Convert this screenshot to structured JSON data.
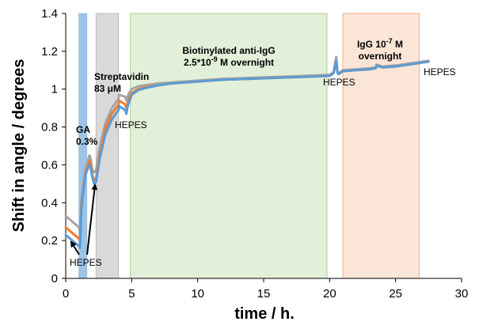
{
  "chart_data": {
    "type": "line",
    "title": "",
    "xlabel": "time / h.",
    "ylabel": "Shift in angle / degrees",
    "xlim": [
      0,
      30
    ],
    "ylim": [
      0,
      1.4
    ],
    "x_ticks": [
      "0",
      "5",
      "10",
      "15",
      "20",
      "25",
      "30"
    ],
    "y_ticks": [
      "0",
      "0.2",
      "0.4",
      "0.6",
      "0.8",
      "1",
      "1.2",
      "1.4"
    ],
    "grid": false,
    "legend": "none",
    "regions": [
      {
        "x_start": 1.0,
        "x_end": 1.6,
        "color": "#9dc3e6"
      },
      {
        "x_start": 2.3,
        "x_end": 4.0,
        "color": "#d9d9d9"
      },
      {
        "x_start": 4.9,
        "x_end": 19.8,
        "color": "#e2efd9"
      },
      {
        "x_start": 21.0,
        "x_end": 26.8,
        "color": "#fbe5d6"
      }
    ],
    "annotations": [
      {
        "id": "ga",
        "lines": [
          "GA",
          "0.3%"
        ]
      },
      {
        "id": "streptavidin",
        "lines": [
          "Streptavidin",
          "83 μM"
        ]
      },
      {
        "id": "hepes1",
        "lines": [
          "HEPES"
        ]
      },
      {
        "id": "hepes2",
        "lines": [
          "HEPES"
        ]
      },
      {
        "id": "biotin",
        "lines": [
          "Biotinylated anti-IgG",
          "2.5*10-9 M overnight"
        ]
      },
      {
        "id": "hepes3",
        "lines": [
          "HEPES"
        ]
      },
      {
        "id": "igg",
        "lines": [
          "IgG 10-7 M",
          "overnight"
        ]
      },
      {
        "id": "hepes4",
        "lines": [
          "HEPES"
        ]
      }
    ],
    "series": [
      {
        "color": "#a5a5a5",
        "x": [
          0,
          0.5,
          1.0,
          1.08,
          1.2,
          1.5,
          1.8,
          1.9,
          2.0,
          2.15,
          2.3,
          2.6,
          3.0,
          3.5,
          4.0,
          4.05,
          4.5,
          4.6,
          4.7,
          4.8,
          5.0,
          5.5,
          6,
          7,
          8,
          10,
          12,
          14,
          16,
          18,
          19.8,
          20.0,
          20.3,
          20.5,
          20.6,
          20.7,
          21.0,
          22,
          23,
          23.5,
          23.55,
          24,
          25,
          26,
          27,
          27.5
        ],
        "y": [
          0.33,
          0.3,
          0.27,
          0.25,
          0.42,
          0.58,
          0.65,
          0.63,
          0.58,
          0.56,
          0.57,
          0.7,
          0.82,
          0.9,
          0.95,
          0.97,
          0.96,
          0.94,
          0.96,
          0.98,
          1.0,
          1.015,
          1.02,
          1.03,
          1.035,
          1.045,
          1.055,
          1.06,
          1.065,
          1.07,
          1.075,
          1.075,
          1.09,
          1.17,
          1.09,
          1.085,
          1.1,
          1.105,
          1.11,
          1.115,
          1.13,
          1.12,
          1.125,
          1.135,
          1.145,
          1.15
        ]
      },
      {
        "color": "#ed7d31",
        "x": [
          0,
          0.5,
          1.0,
          1.08,
          1.2,
          1.5,
          1.8,
          1.9,
          2.0,
          2.15,
          2.3,
          2.6,
          3.0,
          3.5,
          4.0,
          4.05,
          4.5,
          4.6,
          4.7,
          4.8,
          5.0,
          5.5,
          6,
          7,
          8,
          10,
          12,
          14,
          16,
          18,
          19.8,
          20.0,
          20.3,
          20.5,
          20.6,
          20.7,
          21.0,
          22,
          23,
          23.5,
          23.55,
          24,
          25,
          26,
          27,
          27.5
        ],
        "y": [
          0.27,
          0.24,
          0.21,
          0.2,
          0.4,
          0.56,
          0.62,
          0.6,
          0.55,
          0.52,
          0.53,
          0.66,
          0.79,
          0.87,
          0.92,
          0.94,
          0.92,
          0.9,
          0.93,
          0.95,
          0.98,
          1.0,
          1.01,
          1.02,
          1.03,
          1.04,
          1.05,
          1.055,
          1.06,
          1.065,
          1.07,
          1.07,
          1.085,
          1.15,
          1.085,
          1.08,
          1.095,
          1.1,
          1.105,
          1.11,
          1.125,
          1.115,
          1.12,
          1.13,
          1.14,
          1.145
        ]
      },
      {
        "color": "#5b9bd5",
        "x": [
          0,
          0.5,
          1.0,
          1.08,
          1.2,
          1.5,
          1.8,
          1.9,
          2.0,
          2.15,
          2.3,
          2.6,
          3.0,
          3.5,
          4.0,
          4.05,
          4.5,
          4.6,
          4.7,
          4.8,
          5.0,
          5.5,
          6,
          7,
          8,
          10,
          12,
          14,
          16,
          18,
          19.8,
          20.0,
          20.3,
          20.5,
          20.6,
          20.7,
          21.0,
          22,
          23,
          23.5,
          23.55,
          24,
          25,
          26,
          27,
          27.5
        ],
        "y": [
          0.23,
          0.2,
          0.17,
          0.16,
          0.38,
          0.55,
          0.6,
          0.58,
          0.54,
          0.5,
          0.51,
          0.64,
          0.76,
          0.84,
          0.89,
          0.91,
          0.89,
          0.87,
          0.91,
          0.93,
          0.97,
          0.995,
          1.005,
          1.02,
          1.03,
          1.04,
          1.05,
          1.055,
          1.06,
          1.065,
          1.07,
          1.07,
          1.085,
          1.15,
          1.085,
          1.08,
          1.095,
          1.1,
          1.105,
          1.11,
          1.125,
          1.115,
          1.12,
          1.13,
          1.14,
          1.145
        ]
      }
    ]
  }
}
